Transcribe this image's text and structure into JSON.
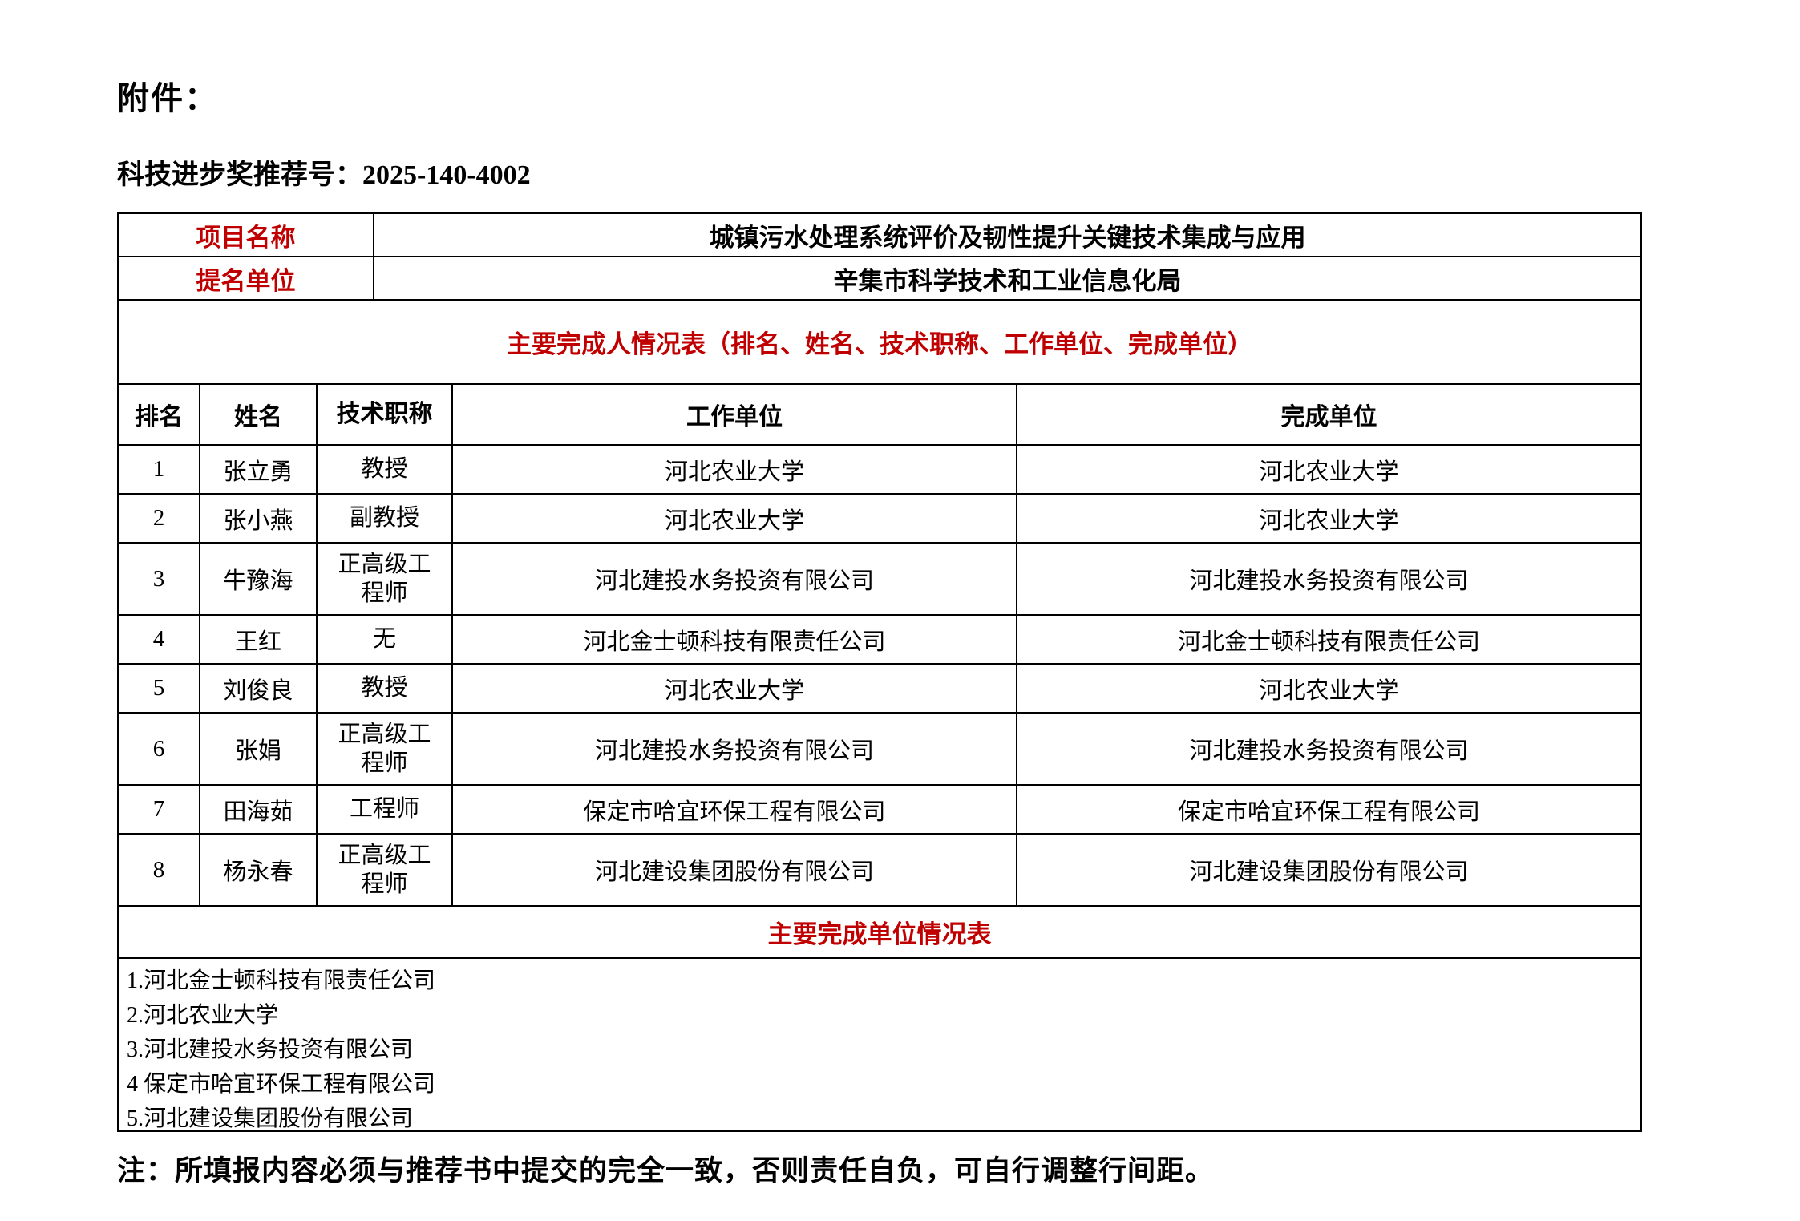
{
  "colors": {
    "accent_red": "#C00000",
    "border_black": "#000000",
    "background": "#FFFFFF"
  },
  "header": {
    "attachment_label": "附件：",
    "recommendation_label": "科技进步奖推荐号：",
    "recommendation_number": "2025-140-4002"
  },
  "info": {
    "project_name_label": "项目名称",
    "project_name_value": "城镇污水处理系统评价及韧性提升关键技术集成与应用",
    "nominating_unit_label": "提名单位",
    "nominating_unit_value": "辛集市科学技术和工业信息化局"
  },
  "completers": {
    "section_title": "主要完成人情况表（排名、姓名、技术职称、工作单位、完成单位）",
    "headers": [
      "排名",
      "姓名",
      "技术职称",
      "工作单位",
      "完成单位"
    ],
    "rows": [
      [
        "1",
        "张立勇",
        "教授",
        "河北农业大学",
        "河北农业大学"
      ],
      [
        "2",
        "张小燕",
        "副教授",
        "河北农业大学",
        "河北农业大学"
      ],
      [
        "3",
        "牛豫海",
        "正高级工程师",
        "河北建投水务投资有限公司",
        "河北建投水务投资有限公司"
      ],
      [
        "4",
        "王红",
        "无",
        "河北金士顿科技有限责任公司",
        "河北金士顿科技有限责任公司"
      ],
      [
        "5",
        "刘俊良",
        "教授",
        "河北农业大学",
        "河北农业大学"
      ],
      [
        "6",
        "张娟",
        "正高级工程师",
        "河北建投水务投资有限公司",
        "河北建投水务投资有限公司"
      ],
      [
        "7",
        "田海茹",
        "工程师",
        "保定市哈宜环保工程有限公司",
        "保定市哈宜环保工程有限公司"
      ],
      [
        "8",
        "杨永春",
        "正高级工程师",
        "河北建设集团股份有限公司",
        "河北建设集团股份有限公司"
      ]
    ]
  },
  "units": {
    "section_title": "主要完成单位情况表",
    "items": [
      "1.河北金士顿科技有限责任公司",
      "2.河北农业大学",
      "3.河北建投水务投资有限公司",
      "4 保定市哈宜环保工程有限公司",
      "5.河北建设集团股份有限公司"
    ]
  },
  "footer": {
    "note": "注：所填报内容必须与推荐书中提交的完全一致，否则责任自负，可自行调整行间距。"
  }
}
